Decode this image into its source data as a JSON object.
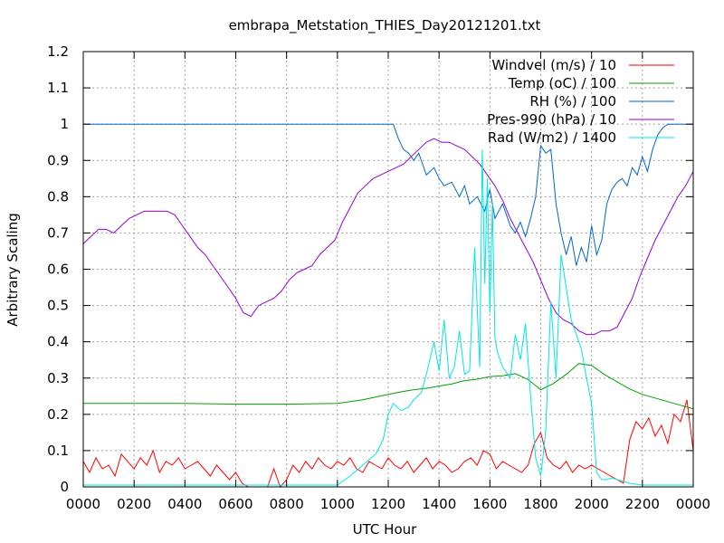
{
  "chart_data": {
    "type": "line",
    "title": "embrapa_Metstation_THIES_Day20121201.txt",
    "xlabel": "UTC Hour",
    "ylabel": "Arbitrary Scaling",
    "xlim": [
      0,
      24
    ],
    "ylim": [
      0,
      1.2
    ],
    "grid": true,
    "legend_position": "top-right",
    "x_ticks": [
      0,
      2,
      4,
      6,
      8,
      10,
      12,
      14,
      16,
      18,
      20,
      22,
      24
    ],
    "x_tick_labels": [
      "0000",
      "0200",
      "0400",
      "0600",
      "0800",
      "1000",
      "1200",
      "1400",
      "1600",
      "1800",
      "2000",
      "2200",
      "0000"
    ],
    "y_ticks": [
      0,
      0.1,
      0.2,
      0.3,
      0.4,
      0.5,
      0.6,
      0.7,
      0.8,
      0.9,
      1,
      1.1,
      1.2
    ],
    "y_tick_labels": [
      "0",
      "0.1",
      "0.2",
      "0.3",
      "0.4",
      "0.5",
      "0.6",
      "0.7",
      "0.8",
      "0.9",
      "1",
      "1.1",
      "1.2"
    ],
    "series": [
      {
        "name": "Windvel (m/s) / 10",
        "color": "#ff0000",
        "x": [
          0,
          0.25,
          0.5,
          0.75,
          1,
          1.25,
          1.5,
          1.75,
          2,
          2.25,
          2.5,
          2.75,
          3,
          3.25,
          3.5,
          3.75,
          4,
          4.25,
          4.5,
          4.75,
          5,
          5.25,
          5.5,
          5.75,
          6,
          6.25,
          6.5,
          6.75,
          7,
          7.25,
          7.5,
          7.75,
          8,
          8.25,
          8.5,
          8.75,
          9,
          9.25,
          9.5,
          9.75,
          10,
          10.25,
          10.5,
          10.75,
          11,
          11.25,
          11.5,
          11.75,
          12,
          12.25,
          12.5,
          12.75,
          13,
          13.25,
          13.5,
          13.75,
          14,
          14.25,
          14.5,
          14.75,
          15,
          15.25,
          15.5,
          15.75,
          16,
          16.25,
          16.5,
          16.75,
          17,
          17.25,
          17.5,
          17.75,
          18,
          18.25,
          18.5,
          18.75,
          19,
          19.25,
          19.5,
          19.75,
          20,
          20.25,
          20.5,
          20.75,
          21,
          21.25,
          21.5,
          21.75,
          22,
          22.25,
          22.5,
          22.75,
          23,
          23.25,
          23.5,
          23.75,
          24
        ],
        "y": [
          0.07,
          0.04,
          0.08,
          0.05,
          0.06,
          0.03,
          0.09,
          0.07,
          0.05,
          0.08,
          0.06,
          0.1,
          0.04,
          0.07,
          0.06,
          0.08,
          0.05,
          0.06,
          0.07,
          0.05,
          0.03,
          0.06,
          0.04,
          0.02,
          0.04,
          0.01,
          0,
          0,
          0,
          0,
          0.05,
          0,
          0.02,
          0.06,
          0.04,
          0.07,
          0.05,
          0.08,
          0.06,
          0.05,
          0.07,
          0.06,
          0.08,
          0.05,
          0.04,
          0.07,
          0.06,
          0.05,
          0.08,
          0.06,
          0.05,
          0.07,
          0.04,
          0.06,
          0.08,
          0.05,
          0.07,
          0.06,
          0.04,
          0.05,
          0.07,
          0.08,
          0.06,
          0.1,
          0.09,
          0.05,
          0.07,
          0.06,
          0.05,
          0.04,
          0.06,
          0.12,
          0.15,
          0.08,
          0.06,
          0.05,
          0.07,
          0.04,
          0.06,
          0.05,
          0.06,
          0.05,
          0.04,
          0.03,
          0.02,
          0.01,
          0.13,
          0.18,
          0.16,
          0.19,
          0.14,
          0.17,
          0.12,
          0.2,
          0.18,
          0.24,
          0.1
        ]
      },
      {
        "name": "Temp (oC) / 100",
        "color": "#00a000",
        "x": [
          0,
          2,
          4,
          6,
          8,
          10,
          11,
          12,
          12.5,
          13,
          13.5,
          14,
          14.5,
          15,
          15.5,
          16,
          16.5,
          17,
          17.5,
          18,
          18.5,
          19,
          19.5,
          20,
          20.5,
          21,
          21.5,
          22,
          22.5,
          23,
          23.5,
          24
        ],
        "y": [
          0.23,
          0.23,
          0.23,
          0.228,
          0.228,
          0.23,
          0.24,
          0.255,
          0.262,
          0.268,
          0.272,
          0.278,
          0.284,
          0.293,
          0.297,
          0.304,
          0.306,
          0.312,
          0.296,
          0.268,
          0.285,
          0.31,
          0.34,
          0.335,
          0.31,
          0.29,
          0.27,
          0.255,
          0.245,
          0.235,
          0.225,
          0.215
        ]
      },
      {
        "name": "RH (%) / 100",
        "color": "#0066cc",
        "x": [
          0,
          12.2,
          12.4,
          12.6,
          12.8,
          13,
          13.2,
          13.5,
          13.8,
          14,
          14.2,
          14.5,
          14.8,
          15,
          15.2,
          15.5,
          15.8,
          16,
          16.2,
          16.5,
          16.8,
          17,
          17.2,
          17.4,
          17.6,
          17.8,
          18,
          18.2,
          18.4,
          18.6,
          18.8,
          19,
          19.2,
          19.4,
          19.6,
          19.8,
          20,
          20.2,
          20.4,
          20.6,
          20.8,
          21,
          21.2,
          21.4,
          21.6,
          21.8,
          22,
          22.2,
          22.4,
          22.6,
          22.8,
          23,
          23.5,
          24
        ],
        "y": [
          1.0,
          1.0,
          0.96,
          0.93,
          0.92,
          0.9,
          0.92,
          0.86,
          0.88,
          0.85,
          0.83,
          0.84,
          0.8,
          0.83,
          0.78,
          0.8,
          0.76,
          0.82,
          0.74,
          0.78,
          0.72,
          0.7,
          0.73,
          0.69,
          0.74,
          0.8,
          0.94,
          0.92,
          0.93,
          0.78,
          0.7,
          0.64,
          0.69,
          0.61,
          0.66,
          0.62,
          0.72,
          0.64,
          0.68,
          0.78,
          0.82,
          0.84,
          0.85,
          0.83,
          0.88,
          0.86,
          0.91,
          0.87,
          0.93,
          0.97,
          0.99,
          1.0,
          1.0,
          1.0
        ]
      },
      {
        "name": "Pres-990 (hPa) / 10",
        "color": "#9400d3",
        "x": [
          0,
          0.3,
          0.6,
          0.9,
          1.2,
          1.5,
          1.8,
          2.1,
          2.4,
          2.7,
          3.0,
          3.3,
          3.6,
          3.9,
          4.2,
          4.5,
          4.8,
          5.1,
          5.4,
          5.7,
          6.0,
          6.3,
          6.6,
          6.9,
          7.2,
          7.5,
          7.8,
          8.1,
          8.4,
          8.7,
          9.0,
          9.3,
          9.6,
          9.9,
          10.2,
          10.5,
          10.8,
          11.1,
          11.4,
          11.7,
          12.0,
          12.3,
          12.6,
          12.9,
          13.2,
          13.5,
          13.8,
          14.1,
          14.4,
          14.7,
          15.0,
          15.3,
          15.6,
          15.9,
          16.2,
          16.5,
          16.8,
          17.1,
          17.4,
          17.7,
          18.0,
          18.3,
          18.6,
          18.9,
          19.2,
          19.5,
          19.8,
          20.1,
          20.4,
          20.7,
          21.0,
          21.3,
          21.6,
          21.9,
          22.2,
          22.5,
          22.8,
          23.1,
          23.4,
          23.7,
          24
        ],
        "y": [
          0.67,
          0.69,
          0.71,
          0.71,
          0.7,
          0.72,
          0.74,
          0.75,
          0.76,
          0.76,
          0.76,
          0.76,
          0.75,
          0.72,
          0.69,
          0.66,
          0.64,
          0.61,
          0.58,
          0.55,
          0.52,
          0.48,
          0.47,
          0.5,
          0.51,
          0.52,
          0.54,
          0.57,
          0.59,
          0.6,
          0.61,
          0.64,
          0.66,
          0.68,
          0.73,
          0.77,
          0.81,
          0.83,
          0.85,
          0.86,
          0.87,
          0.88,
          0.89,
          0.91,
          0.93,
          0.95,
          0.96,
          0.95,
          0.95,
          0.94,
          0.93,
          0.91,
          0.89,
          0.86,
          0.83,
          0.79,
          0.74,
          0.7,
          0.66,
          0.62,
          0.57,
          0.52,
          0.48,
          0.46,
          0.45,
          0.43,
          0.42,
          0.42,
          0.43,
          0.43,
          0.44,
          0.48,
          0.52,
          0.58,
          0.63,
          0.68,
          0.72,
          0.76,
          0.8,
          0.83,
          0.87
        ]
      },
      {
        "name": "Rad (W/m2) / 1400",
        "color": "#00e5e5",
        "x": [
          0,
          10.0,
          10.5,
          11.0,
          11.5,
          11.8,
          12.0,
          12.2,
          12.5,
          12.8,
          13.0,
          13.3,
          13.5,
          13.8,
          14.0,
          14.2,
          14.4,
          14.6,
          14.8,
          15.0,
          15.2,
          15.4,
          15.6,
          15.7,
          15.8,
          15.9,
          16.0,
          16.1,
          16.2,
          16.3,
          16.5,
          16.8,
          17.0,
          17.2,
          17.4,
          17.6,
          17.8,
          18.0,
          18.1,
          18.2,
          18.4,
          18.6,
          18.8,
          19.0,
          19.2,
          19.4,
          19.6,
          19.8,
          20.0,
          20.2,
          20.4,
          20.6,
          20.8,
          21.0,
          21.5,
          22.0,
          24
        ],
        "y": [
          0.005,
          0.005,
          0.03,
          0.06,
          0.09,
          0.13,
          0.2,
          0.23,
          0.21,
          0.22,
          0.24,
          0.26,
          0.31,
          0.4,
          0.32,
          0.46,
          0.3,
          0.33,
          0.43,
          0.31,
          0.32,
          0.66,
          0.33,
          0.93,
          0.56,
          0.85,
          0.48,
          0.78,
          0.41,
          0.37,
          0.33,
          0.3,
          0.42,
          0.35,
          0.45,
          0.25,
          0.08,
          0.03,
          0.09,
          0.16,
          0.51,
          0.3,
          0.64,
          0.55,
          0.46,
          0.42,
          0.38,
          0.3,
          0.23,
          0.04,
          0.02,
          0.02,
          0.025,
          0.02,
          0.01,
          0.005,
          0.005
        ]
      }
    ]
  }
}
